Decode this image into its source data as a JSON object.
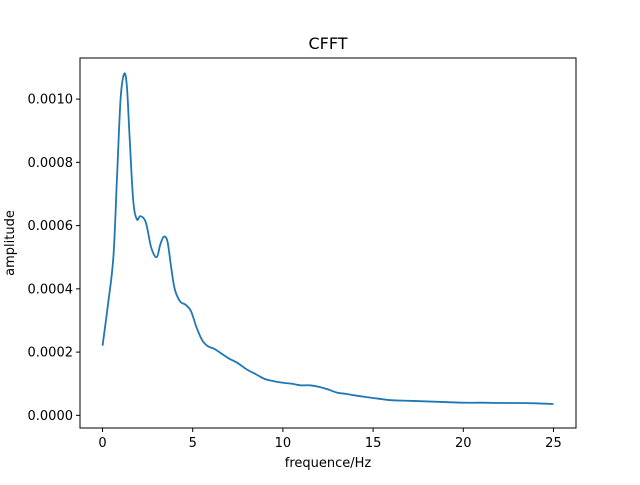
{
  "chart_data": {
    "type": "line",
    "title": "CFFT",
    "xlabel": "frequence/Hz",
    "ylabel": "amplitude",
    "xlim": [
      -1.25,
      26.25
    ],
    "ylim": [
      -4e-05,
      0.00113
    ],
    "xticks": [
      0,
      5,
      10,
      15,
      20,
      25
    ],
    "xtick_labels": [
      "0",
      "5",
      "10",
      "15",
      "20",
      "25"
    ],
    "yticks": [
      0.0,
      0.0002,
      0.0004,
      0.0006,
      0.0008,
      0.001
    ],
    "ytick_labels": [
      "0.0000",
      "0.0002",
      "0.0004",
      "0.0006",
      "0.0008",
      "0.0010"
    ],
    "grid": false,
    "series": [
      {
        "color": "#1f77b4",
        "x": [
          0,
          0.3,
          0.6,
          0.8,
          1.0,
          1.2,
          1.35,
          1.5,
          1.7,
          1.9,
          2.1,
          2.4,
          2.7,
          3.0,
          3.2,
          3.4,
          3.6,
          3.8,
          4.0,
          4.3,
          4.6,
          4.9,
          5.2,
          5.5,
          5.8,
          6.2,
          6.6,
          7.0,
          7.5,
          8.0,
          8.5,
          9.0,
          9.5,
          10.0,
          10.5,
          11.0,
          11.5,
          12.0,
          12.5,
          13.0,
          13.5,
          14.0,
          15.0,
          16.0,
          17.0,
          18.0,
          19.0,
          20.0,
          21.0,
          22.0,
          23.0,
          24.0,
          25.0
        ],
        "y": [
          0.00022,
          0.00035,
          0.0005,
          0.00075,
          0.001,
          0.00108,
          0.00104,
          0.00088,
          0.00068,
          0.00062,
          0.00063,
          0.00061,
          0.00053,
          0.0005,
          0.00054,
          0.000565,
          0.00055,
          0.00047,
          0.0004,
          0.00036,
          0.00035,
          0.00033,
          0.00028,
          0.00024,
          0.00022,
          0.00021,
          0.000195,
          0.00018,
          0.000165,
          0.000145,
          0.00013,
          0.000115,
          0.000108,
          0.000103,
          0.0001,
          9.5e-05,
          9.5e-05,
          9e-05,
          8.2e-05,
          7.2e-05,
          6.8e-05,
          6.3e-05,
          5.5e-05,
          4.8e-05,
          4.6e-05,
          4.4e-05,
          4.2e-05,
          4e-05,
          4e-05,
          3.9e-05,
          3.9e-05,
          3.8e-05,
          3.6e-05
        ]
      }
    ]
  }
}
